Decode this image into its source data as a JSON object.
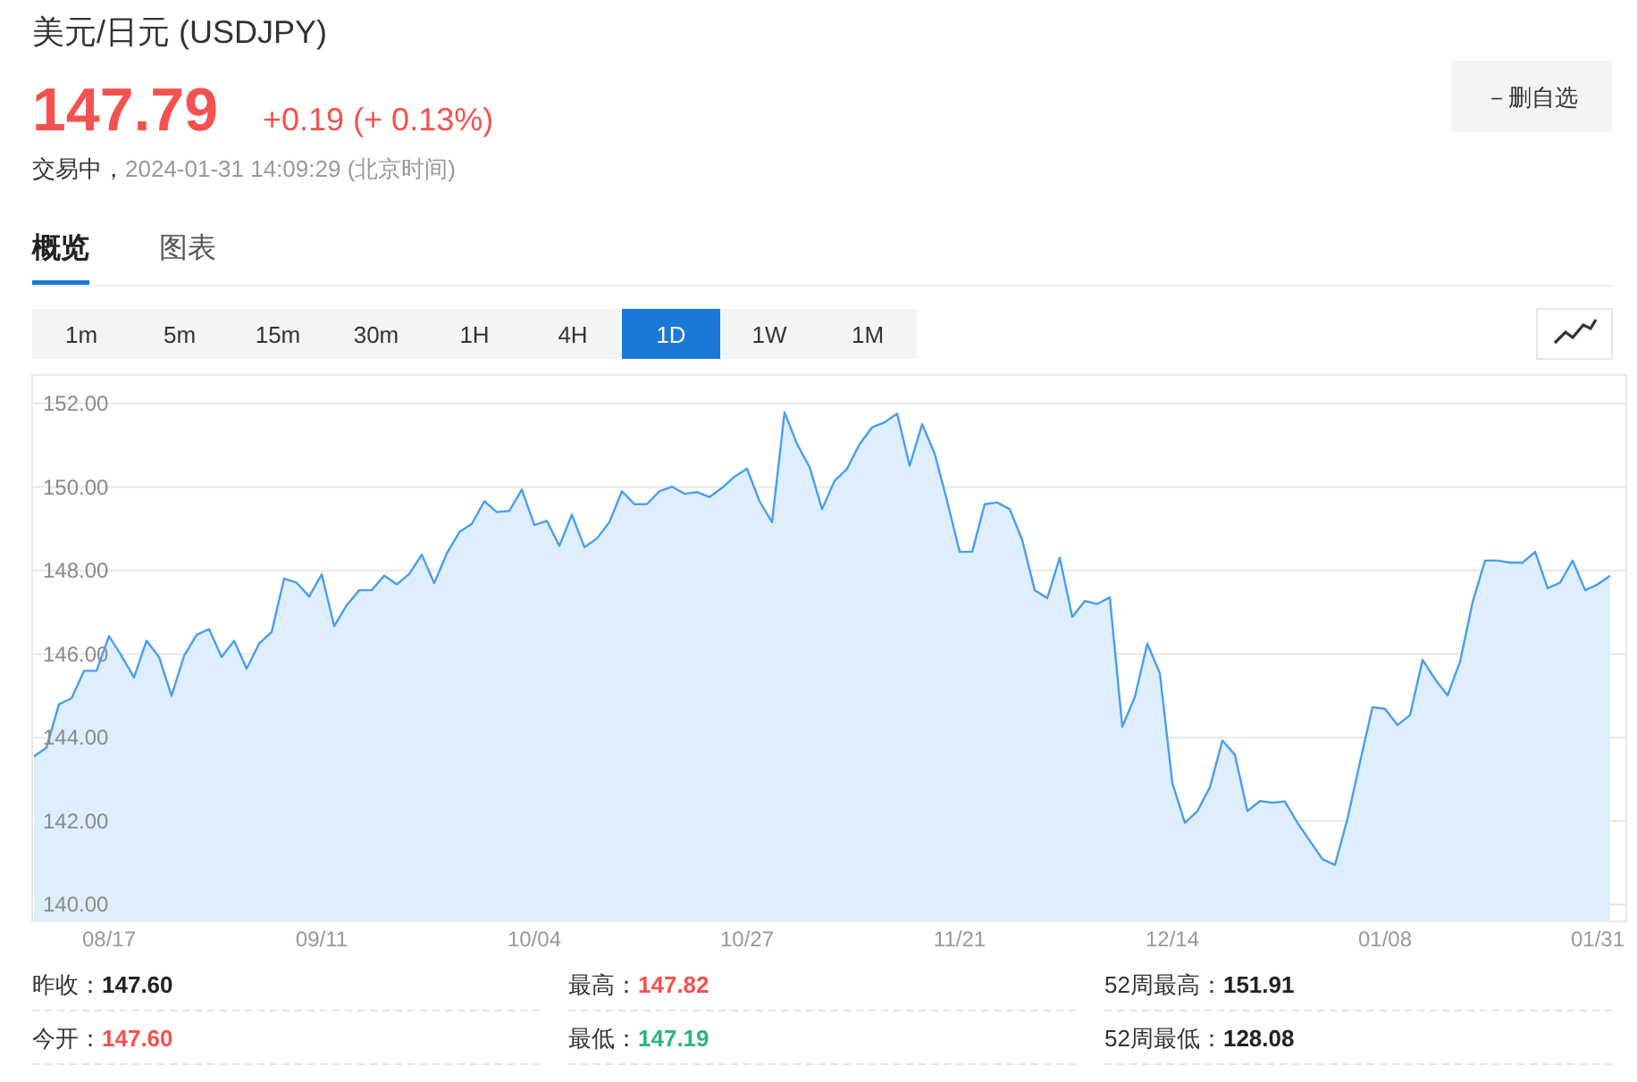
{
  "chart_data": {
    "type": "area",
    "title": "美元/日元 (USDJPY)",
    "categories": [
      null,
      null,
      null,
      null,
      null,
      null,
      "08/17",
      null,
      null,
      null,
      null,
      null,
      null,
      null,
      null,
      null,
      null,
      null,
      null,
      null,
      null,
      null,
      null,
      "09/11",
      null,
      null,
      null,
      null,
      null,
      null,
      null,
      null,
      null,
      null,
      null,
      null,
      null,
      null,
      null,
      null,
      "10/04",
      null,
      null,
      null,
      null,
      null,
      null,
      null,
      null,
      null,
      null,
      null,
      null,
      null,
      null,
      null,
      null,
      "10/27",
      null,
      null,
      null,
      null,
      null,
      null,
      null,
      null,
      null,
      null,
      null,
      null,
      null,
      null,
      null,
      null,
      "11/21",
      null,
      null,
      null,
      null,
      null,
      null,
      null,
      null,
      null,
      null,
      null,
      null,
      null,
      null,
      null,
      null,
      "12/14",
      null,
      null,
      null,
      null,
      null,
      null,
      null,
      null,
      null,
      null,
      null,
      null,
      null,
      null,
      null,
      null,
      "01/08",
      null,
      null,
      null,
      null,
      null,
      null,
      null,
      null,
      null,
      null,
      null,
      null,
      null,
      null,
      null,
      null,
      "01/31",
      null
    ],
    "series": [
      {
        "color": "#4a9ef0",
        "values": [
          143.55,
          143.76,
          144.8,
          144.94,
          145.6,
          145.6,
          146.43,
          145.96,
          145.44,
          146.32,
          145.93,
          145.0,
          145.96,
          146.46,
          146.6,
          145.93,
          146.32,
          145.65,
          146.25,
          146.53,
          147.81,
          147.71,
          147.38,
          147.91,
          146.67,
          147.17,
          147.53,
          147.53,
          147.88,
          147.67,
          147.92,
          148.38,
          147.7,
          148.41,
          148.92,
          149.12,
          149.66,
          149.4,
          149.43,
          149.94,
          149.09,
          149.19,
          148.59,
          149.34,
          148.56,
          148.77,
          149.16,
          149.9,
          149.59,
          149.59,
          149.9,
          150.01,
          149.84,
          149.88,
          149.76,
          149.98,
          150.25,
          150.44,
          149.66,
          149.16,
          151.79,
          151.03,
          150.48,
          149.47,
          150.15,
          150.44,
          151.03,
          151.43,
          151.55,
          151.76,
          150.51,
          151.51,
          150.8,
          149.66,
          148.45,
          148.45,
          149.59,
          149.63,
          149.47,
          148.73,
          147.53,
          147.34,
          148.31,
          146.89,
          147.27,
          147.2,
          147.36,
          144.26,
          144.97,
          146.25,
          145.54,
          142.91,
          141.96,
          142.24,
          142.81,
          143.93,
          143.59,
          142.24,
          142.48,
          142.44,
          142.47,
          141.96,
          141.52,
          141.09,
          140.95,
          142.06,
          143.41,
          144.73,
          144.69,
          144.3,
          144.54,
          145.86,
          145.4,
          145.01,
          145.82,
          147.24,
          148.24,
          148.24,
          148.19,
          148.19,
          148.45,
          147.58,
          147.71,
          148.24,
          147.53,
          147.67,
          147.88
        ]
      }
    ],
    "ylim": [
      139.6,
      152.6
    ],
    "yticks": [
      {
        "value": 140,
        "label": "140.00"
      },
      {
        "value": 142,
        "label": "142.00"
      },
      {
        "value": 144,
        "label": "144.00"
      },
      {
        "value": 146,
        "label": "146.00"
      },
      {
        "value": 148,
        "label": "148.00"
      },
      {
        "value": 150,
        "label": "150.00"
      },
      {
        "value": 152,
        "label": "152.00"
      }
    ],
    "grid": "y",
    "annotations": [
      "147.79",
      "+0.19 (+ 0.13%)",
      "交易中，2024-01-31 14:09:29 (北京时间)",
      "－删自选",
      "概览",
      "图表",
      "1m",
      "5m",
      "15m",
      "30m",
      "1H",
      "4H",
      "1D",
      "1W",
      "1M",
      "昨收：147.60",
      "今开：147.60",
      "最高：147.82",
      "最低：147.19",
      "52周最高：151.91",
      "52周最低：128.08"
    ]
  }
}
